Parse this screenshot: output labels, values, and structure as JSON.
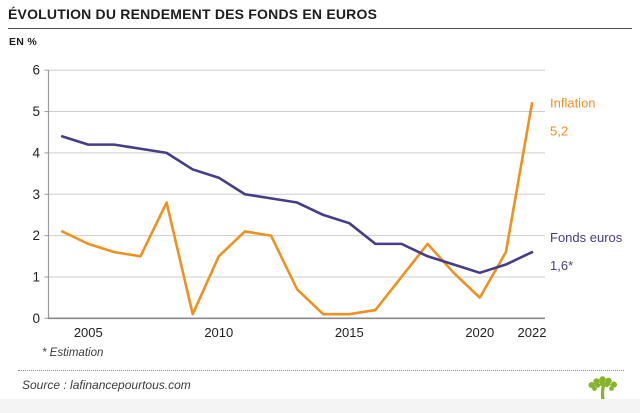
{
  "header": {
    "title": "ÉVOLUTION DU RENDEMENT DES FONDS EN EUROS",
    "unit": "EN %"
  },
  "chart_data": {
    "type": "line",
    "x": [
      2004,
      2005,
      2006,
      2007,
      2008,
      2009,
      2010,
      2011,
      2012,
      2013,
      2014,
      2015,
      2016,
      2017,
      2018,
      2019,
      2020,
      2021,
      2022
    ],
    "series": [
      {
        "name": "Inflation",
        "color": "#ED9121",
        "values": [
          2.1,
          1.8,
          1.6,
          1.5,
          2.8,
          0.1,
          1.5,
          2.1,
          2.0,
          0.7,
          0.1,
          0.1,
          0.2,
          1.0,
          1.8,
          1.1,
          0.5,
          1.6,
          5.2
        ],
        "end_label": "Inflation",
        "end_value_label": "5,2"
      },
      {
        "name": "Fonds euros",
        "color": "#453C8A",
        "values": [
          4.4,
          4.2,
          4.2,
          4.1,
          4.0,
          3.6,
          3.4,
          3.0,
          2.9,
          2.8,
          2.5,
          2.3,
          1.8,
          1.8,
          1.5,
          1.3,
          1.1,
          1.3,
          1.6
        ],
        "end_label": "Fonds euros",
        "end_value_label": "1,6*"
      }
    ],
    "ylim": [
      0,
      6
    ],
    "yticks": [
      0,
      1,
      2,
      3,
      4,
      5,
      6
    ],
    "xticks": [
      2005,
      2010,
      2015,
      2020,
      2022
    ],
    "grid": true,
    "legend_position": "line-end-labels"
  },
  "footer": {
    "note": "* Estimation",
    "source": "Source : lafinancepourtous.com"
  },
  "logo": {
    "name": "lafinancepourtous-tree",
    "color": "#86B42A"
  },
  "colors": {
    "grid": "#CDCDCD",
    "axis": "#8A8A8A",
    "axis_minor": "#9B9B9B",
    "text": "#222222"
  }
}
